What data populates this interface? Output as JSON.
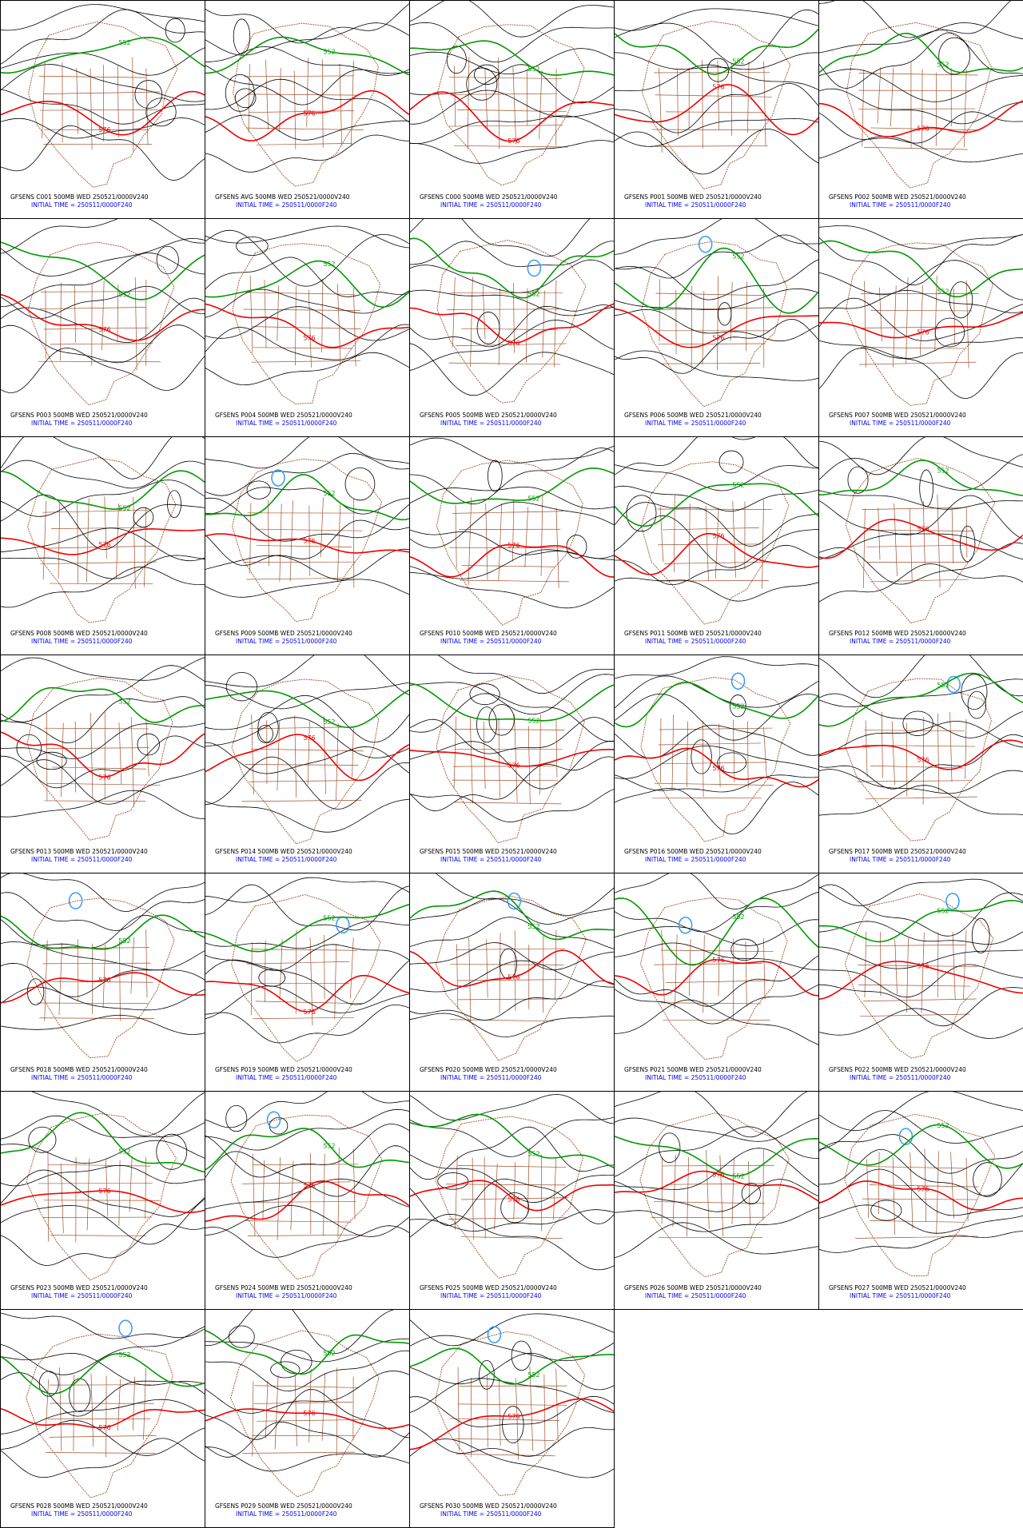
{
  "panels": [
    {
      "title": "GFSENS C001 500MB WED 250521/0000V240",
      "initial_time": "INITIAL TIME = 250511/0000F240",
      "contour_labels": [
        "552",
        "576"
      ]
    },
    {
      "title": "GFSENS AVG 500MB WED 250521/0000V240",
      "initial_time": "INITIAL TIME = 250511/0000F240",
      "contour_labels": [
        "552",
        "576"
      ]
    },
    {
      "title": "GFSENS C000 500MB WED 250521/0000V240",
      "initial_time": "INITIAL TIME = 250511/0000F240",
      "contour_labels": [
        "552",
        "576"
      ]
    },
    {
      "title": "GFSENS P001 500MB WED 250521/0000V240",
      "initial_time": "INITIAL TIME = 250511/0000F240",
      "contour_labels": [
        "552",
        "576"
      ]
    },
    {
      "title": "GFSENS P002 500MB WED 250521/0000V240",
      "initial_time": "INITIAL TIME = 250511/0000F240",
      "contour_labels": [
        "552",
        "576"
      ]
    },
    {
      "title": "GFSENS P003 500MB WED 250521/0000V240",
      "initial_time": "INITIAL TIME = 250511/0000F240",
      "contour_labels": [
        "552",
        "576"
      ]
    },
    {
      "title": "GFSENS P004 500MB WED 250521/0000V240",
      "initial_time": "INITIAL TIME = 250511/0000F240",
      "contour_labels": [
        "552",
        "576"
      ]
    },
    {
      "title": "GFSENS P005 500MB WED 250521/0000V240",
      "initial_time": "INITIAL TIME = 250511/0000F240",
      "contour_labels": [
        "552",
        "576"
      ]
    },
    {
      "title": "GFSENS P006 500MB WED 250521/0000V240",
      "initial_time": "INITIAL TIME = 250511/0000F240",
      "contour_labels": [
        "552",
        "576"
      ]
    },
    {
      "title": "GFSENS P007 500MB WED 250521/0000V240",
      "initial_time": "INITIAL TIME = 250511/0000F240",
      "contour_labels": [
        "552",
        "576"
      ]
    },
    {
      "title": "GFSENS P008 500MB WED 250521/0000V240",
      "initial_time": "INITIAL TIME = 250511/0000F240",
      "contour_labels": [
        "552",
        "576"
      ]
    },
    {
      "title": "GFSENS P009 500MB WED 250521/0000V240",
      "initial_time": "INITIAL TIME = 250511/0000F240",
      "contour_labels": [
        "552",
        "576"
      ]
    },
    {
      "title": "GFSENS P010 500MB WED 250521/0000V240",
      "initial_time": "INITIAL TIME = 250511/0000F240",
      "contour_labels": [
        "552",
        "576"
      ]
    },
    {
      "title": "GFSENS P011 500MB WED 250521/0000V240",
      "initial_time": "INITIAL TIME = 250511/0000F240",
      "contour_labels": [
        "552",
        "576"
      ]
    },
    {
      "title": "GFSENS P012 500MB WED 250521/0000V240",
      "initial_time": "INITIAL TIME = 250511/0000F240",
      "contour_labels": [
        "552",
        "576"
      ]
    },
    {
      "title": "GFSENS P013 500MB WED 250521/0000V240",
      "initial_time": "INITIAL TIME = 250511/0000F240",
      "contour_labels": [
        "552",
        "576"
      ]
    },
    {
      "title": "GFSENS P014 500MB WED 250521/0000V240",
      "initial_time": "INITIAL TIME = 250511/0000F240",
      "contour_labels": [
        "552",
        "576"
      ]
    },
    {
      "title": "GFSENS P015 500MB WED 250521/0000V240",
      "initial_time": "INITIAL TIME = 250511/0000F240",
      "contour_labels": [
        "552",
        "576"
      ]
    },
    {
      "title": "GFSENS P016 500MB WED 250521/0000V240",
      "initial_time": "INITIAL TIME = 250511/0000F240",
      "contour_labels": [
        "552",
        "576"
      ]
    },
    {
      "title": "GFSENS P017 500MB WED 250521/0000V240",
      "initial_time": "INITIAL TIME = 250511/0000F240",
      "contour_labels": [
        "552",
        "576"
      ]
    },
    {
      "title": "GFSENS P018 500MB WED 250521/0000V240",
      "initial_time": "INITIAL TIME = 250511/0000F240",
      "contour_labels": [
        "552",
        "576"
      ]
    },
    {
      "title": "GFSENS P019 500MB WED 250521/0000V240",
      "initial_time": "INITIAL TIME = 250511/0000F240",
      "contour_labels": [
        "552",
        "576"
      ]
    },
    {
      "title": "GFSENS P020 500MB WED 250521/0000V240",
      "initial_time": "INITIAL TIME = 250511/0000F240",
      "contour_labels": [
        "552",
        "576"
      ]
    },
    {
      "title": "GFSENS P021 500MB WED 250521/0000V240",
      "initial_time": "INITIAL TIME = 250511/0000F240",
      "contour_labels": [
        "552",
        "576"
      ]
    },
    {
      "title": "GFSENS P022 500MB WED 250521/0000V240",
      "initial_time": "INITIAL TIME = 250511/0000F240",
      "contour_labels": [
        "552",
        "576"
      ]
    },
    {
      "title": "GFSENS P023 500MB WED 250521/0000V240",
      "initial_time": "INITIAL TIME = 250511/0000F240",
      "contour_labels": [
        "552",
        "576"
      ]
    },
    {
      "title": "GFSENS P024 500MB WED 250521/0000V240",
      "initial_time": "INITIAL TIME = 250511/0000F240",
      "contour_labels": [
        "552",
        "576"
      ]
    },
    {
      "title": "GFSENS P025 500MB WED 250521/0000V240",
      "initial_time": "INITIAL TIME = 250511/0000F240",
      "contour_labels": [
        "552",
        "576"
      ]
    },
    {
      "title": "GFSENS P026 500MB WED 250521/0000V240",
      "initial_time": "INITIAL TIME = 250511/0000F240",
      "contour_labels": [
        "552",
        "576"
      ]
    },
    {
      "title": "GFSENS P027 500MB WED 250521/0000V240",
      "initial_time": "INITIAL TIME = 250511/0000F240",
      "contour_labels": [
        "552",
        "576"
      ]
    },
    {
      "title": "GFSENS P028 500MB WED 250521/0000V240",
      "initial_time": "INITIAL TIME = 250511/0000F240",
      "contour_labels": [
        "552",
        "576"
      ]
    },
    {
      "title": "GFSENS P029 500MB WED 250521/0000V240",
      "initial_time": "INITIAL TIME = 250511/0000F240",
      "contour_labels": [
        "552",
        "576"
      ]
    },
    {
      "title": "GFSENS P030 500MB WED 250521/0000V240",
      "initial_time": "INITIAL TIME = 250511/0000F240",
      "contour_labels": [
        "552",
        "576"
      ]
    }
  ]
}
